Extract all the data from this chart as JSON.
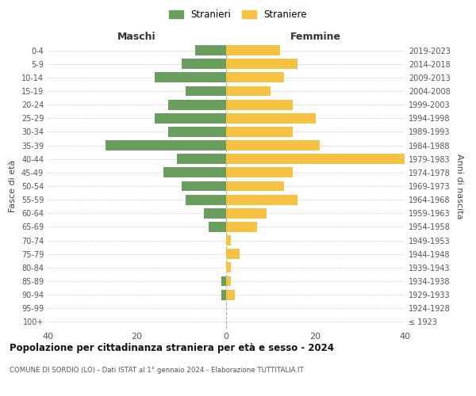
{
  "age_groups": [
    "100+",
    "95-99",
    "90-94",
    "85-89",
    "80-84",
    "75-79",
    "70-74",
    "65-69",
    "60-64",
    "55-59",
    "50-54",
    "45-49",
    "40-44",
    "35-39",
    "30-34",
    "25-29",
    "20-24",
    "15-19",
    "10-14",
    "5-9",
    "0-4"
  ],
  "birth_years": [
    "≤ 1923",
    "1924-1928",
    "1929-1933",
    "1934-1938",
    "1939-1943",
    "1944-1948",
    "1949-1953",
    "1954-1958",
    "1959-1963",
    "1964-1968",
    "1969-1973",
    "1974-1978",
    "1979-1983",
    "1984-1988",
    "1989-1993",
    "1994-1998",
    "1999-2003",
    "2004-2008",
    "2009-2013",
    "2014-2018",
    "2019-2023"
  ],
  "maschi": [
    0,
    0,
    1,
    1,
    0,
    0,
    0,
    4,
    5,
    9,
    10,
    14,
    11,
    27,
    13,
    16,
    13,
    9,
    16,
    10,
    7
  ],
  "femmine": [
    0,
    0,
    2,
    1,
    1,
    3,
    1,
    7,
    9,
    16,
    13,
    15,
    40,
    21,
    15,
    20,
    15,
    10,
    13,
    16,
    12
  ],
  "male_color": "#6a9e5e",
  "female_color": "#f5c242",
  "xlim": 40,
  "title": "Popolazione per cittadinanza straniera per età e sesso - 2024",
  "subtitle": "COMUNE DI SORDIO (LO) - Dati ISTAT al 1° gennaio 2024 - Elaborazione TUTTITALIA.IT",
  "legend_stranieri": "Stranieri",
  "legend_straniere": "Straniere",
  "ylabel_left": "Fasce di età",
  "ylabel_right": "Anni di nascita",
  "header_maschi": "Maschi",
  "header_femmine": "Femmine",
  "bg_color": "#ffffff",
  "grid_color": "#cccccc",
  "bar_height": 0.75
}
